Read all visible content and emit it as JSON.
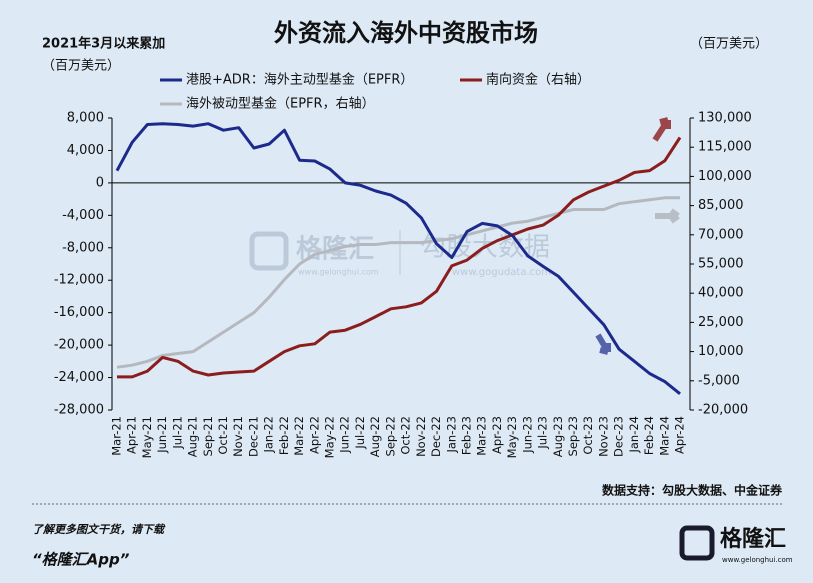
{
  "chart_data": {
    "type": "line",
    "title": "外资流入海外中资股市场",
    "y_label": [
      "2021年3月以来累加",
      "（百万美元）"
    ],
    "y2_label": "（百万美元）",
    "categories": [
      "Mar-21",
      "Apr-21",
      "May-21",
      "Jun-21",
      "Jul-21",
      "Aug-21",
      "Sep-21",
      "Oct-21",
      "Nov-21",
      "Dec-21",
      "Jan-22",
      "Feb-22",
      "Mar-22",
      "Apr-22",
      "May-22",
      "Jun-22",
      "Jul-22",
      "Aug-22",
      "Sep-22",
      "Oct-22",
      "Nov-22",
      "Dec-22",
      "Jan-23",
      "Feb-23",
      "Mar-23",
      "Apr-23",
      "May-23",
      "Jun-23",
      "Jul-23",
      "Aug-23",
      "Sep-23",
      "Oct-23",
      "Nov-23",
      "Dec-23",
      "Jan-24",
      "Feb-24",
      "Mar-24",
      "Apr-24"
    ],
    "series": [
      {
        "name": "港股+ADR：海外主动型基金（EPFR）",
        "color": "#1c2a8c",
        "axis": "y",
        "values": [
          1500,
          5000,
          7200,
          7300,
          7200,
          7000,
          7300,
          6500,
          6800,
          4300,
          4800,
          6500,
          2800,
          2700,
          1700,
          0,
          -300,
          -1000,
          -1500,
          -2500,
          -4300,
          -7500,
          -9200,
          -6000,
          -5000,
          -5300,
          -6500,
          -9000,
          -10300,
          -11500,
          -13500,
          -15500,
          -17500,
          -20500,
          -22000,
          -23500,
          -24500,
          -26000
        ]
      },
      {
        "name": "南向资金（右轴）",
        "color": "#8b1d1d",
        "axis": "y2",
        "values": [
          -3000,
          -3000,
          0,
          7000,
          5000,
          0,
          -2000,
          -1000,
          -500,
          0,
          5000,
          10000,
          13000,
          14000,
          20000,
          21000,
          24000,
          28000,
          32000,
          33000,
          35000,
          41000,
          54000,
          57000,
          63000,
          67000,
          70000,
          73000,
          75000,
          80000,
          88000,
          92000,
          95000,
          98000,
          102000,
          103000,
          108000,
          120000
        ]
      },
      {
        "name": "海外被动型基金（EPFR，右轴）",
        "color": "#b5b9bf",
        "axis": "y2",
        "values": [
          2000,
          3000,
          5000,
          8000,
          9000,
          10000,
          15000,
          20000,
          25000,
          30000,
          38000,
          47000,
          55000,
          60000,
          62000,
          64000,
          65000,
          65000,
          66000,
          66000,
          66000,
          67000,
          68000,
          70000,
          72000,
          74000,
          76000,
          77000,
          79000,
          81000,
          83000,
          83000,
          83000,
          86000,
          87000,
          88000,
          89000,
          89000
        ]
      }
    ],
    "ylim": [
      -28000,
      8000
    ],
    "yticks": [
      {
        "value": 8000,
        "label": "8,000"
      },
      {
        "value": 4000,
        "label": "4,000"
      },
      0,
      {
        "value": -4000,
        "label": "-4,000"
      },
      {
        "value": -8000,
        "label": "-8,000"
      },
      {
        "value": -12000,
        "label": "-12,000"
      },
      {
        "value": -16000,
        "label": "-16,000"
      },
      {
        "value": -20000,
        "label": "-20,000"
      },
      {
        "value": -24000,
        "label": "-24,000"
      },
      {
        "value": -28000,
        "label": "-28,000"
      }
    ],
    "y2lim": [
      -20000,
      130000
    ],
    "y2ticks": [
      {
        "value": 130000,
        "label": "130,000"
      },
      {
        "value": 115000,
        "label": "115,000"
      },
      {
        "value": 100000,
        "label": "100,000"
      },
      {
        "value": 85000,
        "label": "85,000"
      },
      {
        "value": 70000,
        "label": "70,000"
      },
      {
        "value": 55000,
        "label": "55,000"
      },
      {
        "value": 40000,
        "label": "40,000"
      },
      {
        "value": 25000,
        "label": "25,000"
      },
      {
        "value": 10000,
        "label": "10,000"
      },
      {
        "value": -5000,
        "label": "-5,000"
      },
      {
        "value": -20000,
        "label": "-20,000"
      }
    ],
    "grid": false
  },
  "watermark": {
    "brand": "格隆汇",
    "brand_url": "www.gelonghui.com",
    "partner": "勾股大数据",
    "partner_url": "www.gogudata.com"
  },
  "footer": {
    "source": "数据支持：勾股大数据、中金证券",
    "promo": "了解更多图文干货，请下载",
    "app": "“格隆汇App”",
    "logo": "格隆汇",
    "logo_url": "www.gelonghui.com"
  }
}
